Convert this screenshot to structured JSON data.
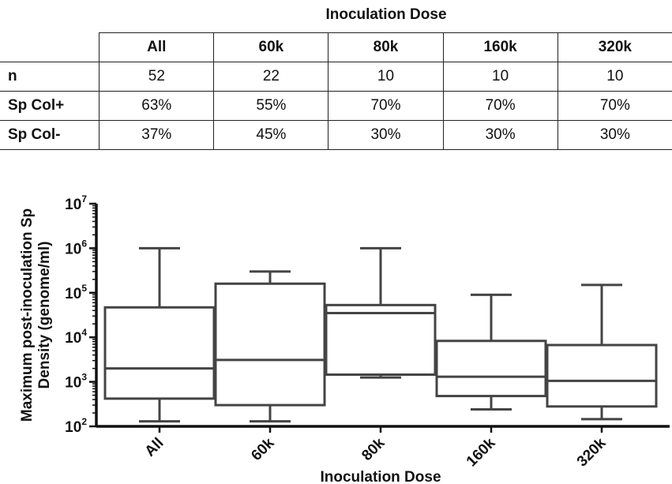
{
  "table": {
    "title": "Inoculation Dose",
    "columns": [
      "All",
      "60k",
      "80k",
      "160k",
      "320k"
    ],
    "rows": [
      {
        "label": "n",
        "values": [
          "52",
          "22",
          "10",
          "10",
          "10"
        ]
      },
      {
        "label": "Sp Col+",
        "values": [
          "63%",
          "55%",
          "70%",
          "70%",
          "70%"
        ]
      },
      {
        "label": "Sp Col-",
        "values": [
          "37%",
          "45%",
          "30%",
          "30%",
          "30%"
        ]
      }
    ]
  },
  "chart_data": {
    "type": "boxplot",
    "title": "",
    "xlabel": "Inoculation Dose",
    "ylabel_line1": "Maximum post-inoculation Sp",
    "ylabel_line2": "Density (genome/ml)",
    "yscale": "log",
    "ylim": [
      100,
      10000000
    ],
    "yticks": [
      {
        "value": 100,
        "base": "10",
        "exp": "2"
      },
      {
        "value": 1000,
        "base": "10",
        "exp": "3"
      },
      {
        "value": 10000,
        "base": "10",
        "exp": "4"
      },
      {
        "value": 100000,
        "base": "10",
        "exp": "5"
      },
      {
        "value": 1000000,
        "base": "10",
        "exp": "6"
      },
      {
        "value": 10000000,
        "base": "10",
        "exp": "7"
      }
    ],
    "categories": [
      "All",
      "60k",
      "80k",
      "160k",
      "320k"
    ],
    "boxes": [
      {
        "name": "All",
        "min": 130,
        "q1": 420,
        "median": 2000,
        "q3": 47000,
        "max": 1000000
      },
      {
        "name": "60k",
        "min": 130,
        "q1": 300,
        "median": 3100,
        "q3": 160000,
        "max": 300000
      },
      {
        "name": "80k",
        "min": 1250,
        "q1": 1450,
        "median": 35000,
        "q3": 53000,
        "max": 1000000
      },
      {
        "name": "160k",
        "min": 240,
        "q1": 480,
        "median": 1300,
        "q3": 8300,
        "max": 90000
      },
      {
        "name": "320k",
        "min": 145,
        "q1": 280,
        "median": 1050,
        "q3": 6700,
        "max": 150000
      }
    ],
    "grid": false,
    "legend": "none"
  }
}
